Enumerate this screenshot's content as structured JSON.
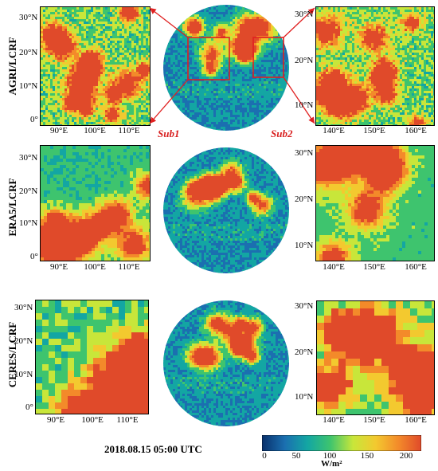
{
  "rows": [
    {
      "label": "AGRI/LCRF"
    },
    {
      "label": "ERA5/LCRF"
    },
    {
      "label": "CERES/LCRF"
    }
  ],
  "sub_labels": {
    "sub1": "Sub1",
    "sub2": "Sub2"
  },
  "left_axis": {
    "lat_ticks": [
      "30°N",
      "20°N",
      "10°N",
      "0°"
    ],
    "lon_ticks": [
      "90°E",
      "100°E",
      "110°E"
    ]
  },
  "right_axis": {
    "lat_ticks": [
      "30°N",
      "20°N",
      "10°N"
    ],
    "lon_ticks": [
      "140°E",
      "150°E",
      "160°E"
    ]
  },
  "timestamp": "2018.08.15 05:00 UTC",
  "colorbar": {
    "ticks": [
      "0",
      "50",
      "100",
      "150",
      "200"
    ],
    "unit": "W/m²",
    "colors": [
      "#08306b",
      "#1b6fb0",
      "#13a6a3",
      "#3ec46e",
      "#c8e63a",
      "#f3c92f",
      "#f38a2a",
      "#e04a2a"
    ]
  },
  "colors": {
    "box": "#e02020",
    "sub_label": "#d81e1e"
  }
}
